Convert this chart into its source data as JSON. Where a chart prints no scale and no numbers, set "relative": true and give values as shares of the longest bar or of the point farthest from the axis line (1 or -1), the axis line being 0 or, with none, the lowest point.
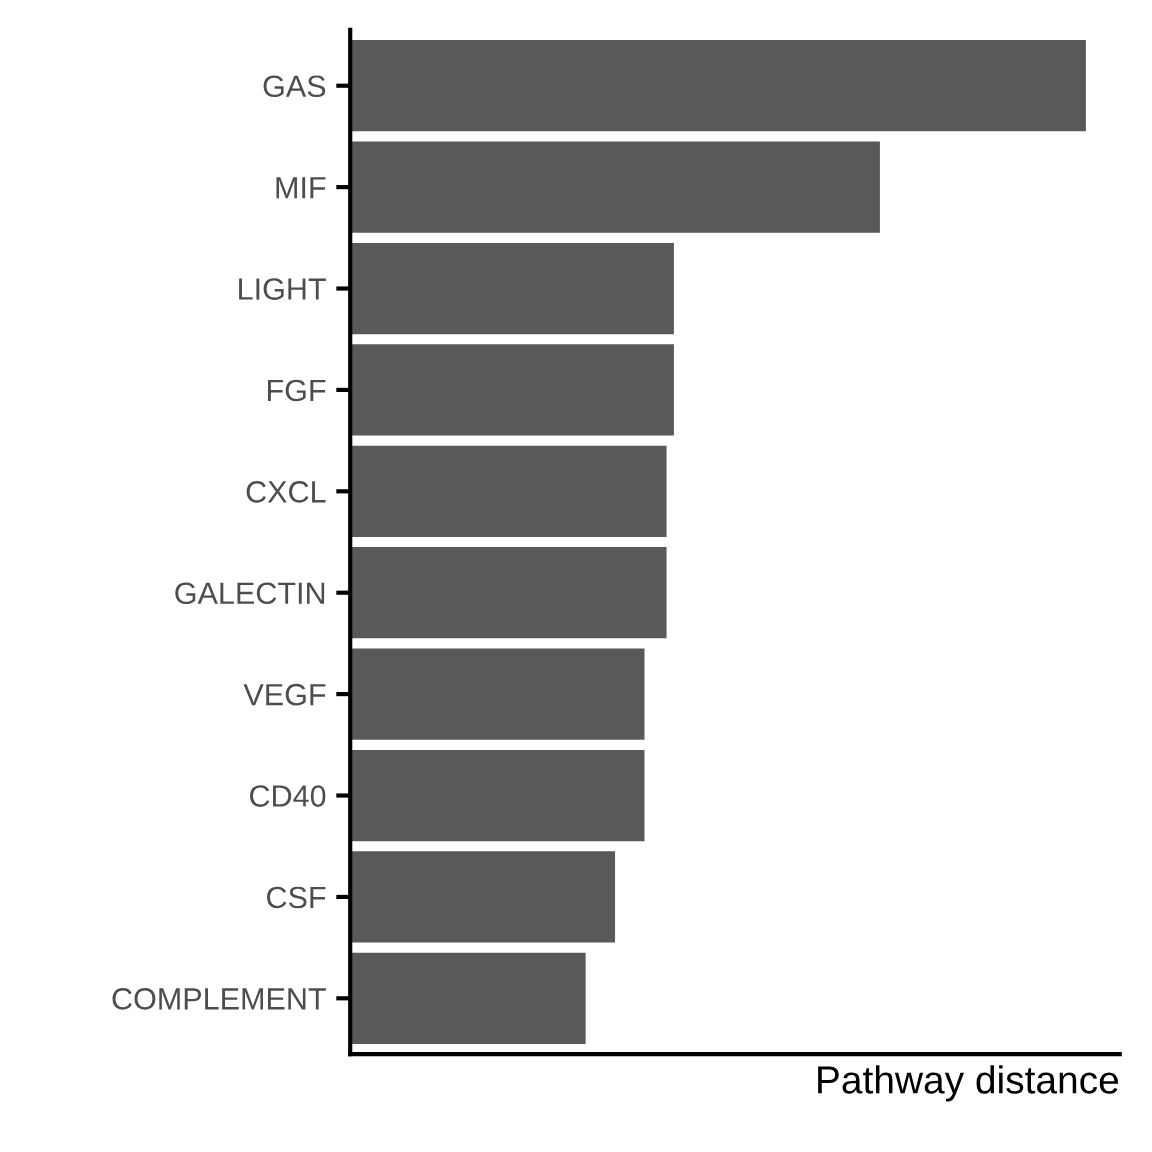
{
  "chart_data": {
    "type": "bar",
    "orientation": "horizontal",
    "relative": true,
    "xlabel": "Pathway distance",
    "categories": [
      "GAS",
      "MIF",
      "LIGHT",
      "FGF",
      "CXCL",
      "GALECTIN",
      "VEGF",
      "CD40",
      "CSF",
      "COMPLEMENT"
    ],
    "values": [
      1,
      0.72,
      0.44,
      0.44,
      0.43,
      0.43,
      0.4,
      0.4,
      0.36,
      0.32
    ],
    "color": "#595959",
    "tick_labels": "y",
    "grid": false,
    "legend": false
  }
}
